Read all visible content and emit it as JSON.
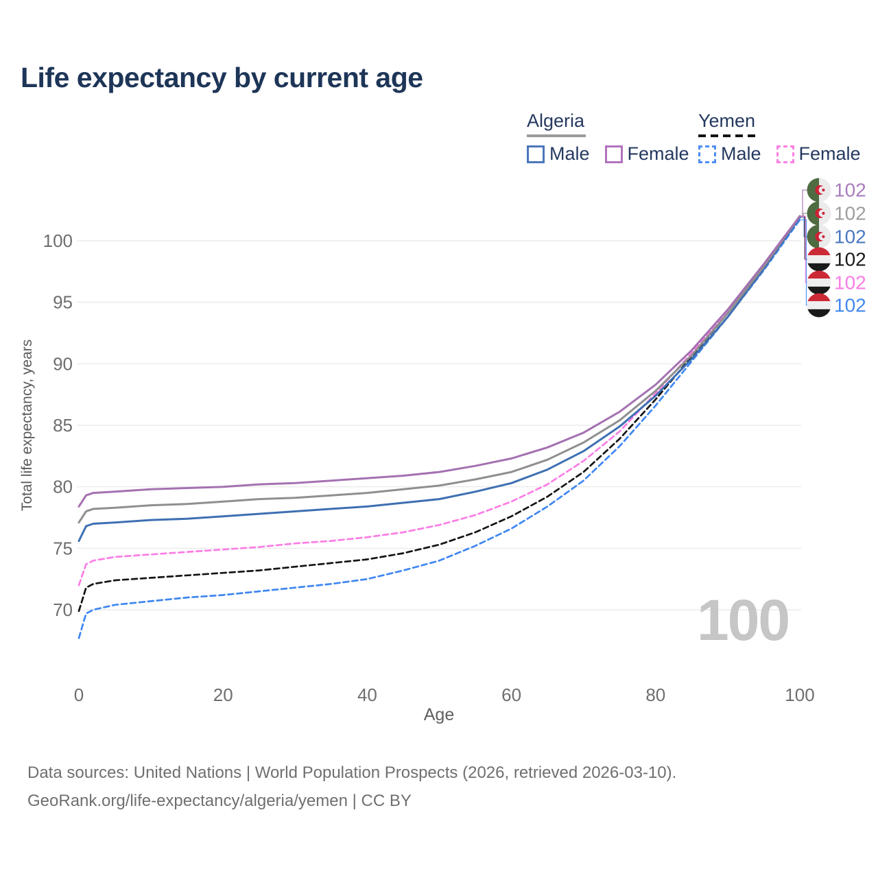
{
  "title": "Life expectancy by current age",
  "watermark": "100",
  "legend": {
    "groups": [
      {
        "label": "Algeria",
        "line_style": "solid",
        "underline_color": "#9a9a9a",
        "items": [
          {
            "label": "Male",
            "color": "#4a77bc"
          },
          {
            "label": "Female",
            "color": "#b173bd"
          }
        ]
      },
      {
        "label": "Yemen",
        "line_style": "dashed",
        "underline_color": "#141414",
        "items": [
          {
            "label": "Male",
            "color": "#4d8ef2"
          },
          {
            "label": "Female",
            "color": "#fb80e2"
          }
        ]
      }
    ]
  },
  "footer": {
    "line1": "Data sources: United Nations | World Population Prospects (2026, retrieved 2026-03-10).",
    "line2": "GeoRank.org/life-expectancy/algeria/yemen | CC BY"
  },
  "chart_data": {
    "type": "line",
    "title": "Life expectancy by current age",
    "xlabel": "Age",
    "ylabel": "Total life expectancy, years",
    "xlim": [
      0,
      100
    ],
    "ylim": [
      66,
      103
    ],
    "xticks": [
      0,
      20,
      40,
      60,
      80,
      100
    ],
    "yticks": [
      70,
      75,
      80,
      85,
      90,
      95,
      100
    ],
    "grid": "horizontal",
    "grid_color": "#ececec",
    "tick_color": "#6e6e6e",
    "legend_position": "top-right",
    "series": [
      {
        "name": "Algeria Female",
        "country": "algeria",
        "color": "#a471b1",
        "dashed": false,
        "end_label": "102",
        "end_label_color": "#a97cbc",
        "points": [
          [
            0,
            78.4
          ],
          [
            1,
            79.3
          ],
          [
            2,
            79.5
          ],
          [
            5,
            79.6
          ],
          [
            10,
            79.8
          ],
          [
            15,
            79.9
          ],
          [
            20,
            80.0
          ],
          [
            25,
            80.2
          ],
          [
            30,
            80.3
          ],
          [
            35,
            80.5
          ],
          [
            40,
            80.7
          ],
          [
            45,
            80.9
          ],
          [
            50,
            81.2
          ],
          [
            55,
            81.7
          ],
          [
            60,
            82.3
          ],
          [
            65,
            83.2
          ],
          [
            70,
            84.4
          ],
          [
            75,
            86.1
          ],
          [
            80,
            88.3
          ],
          [
            85,
            91.1
          ],
          [
            90,
            94.4
          ],
          [
            95,
            98.1
          ],
          [
            100,
            102
          ]
        ]
      },
      {
        "name": "Algeria",
        "country": "algeria",
        "color": "#8f8f8f",
        "dashed": false,
        "end_label": "102",
        "end_label_color": "#9e9e9e",
        "points": [
          [
            0,
            77.1
          ],
          [
            1,
            78.0
          ],
          [
            2,
            78.2
          ],
          [
            5,
            78.3
          ],
          [
            10,
            78.5
          ],
          [
            15,
            78.6
          ],
          [
            20,
            78.8
          ],
          [
            25,
            79.0
          ],
          [
            30,
            79.1
          ],
          [
            35,
            79.3
          ],
          [
            40,
            79.5
          ],
          [
            45,
            79.8
          ],
          [
            50,
            80.1
          ],
          [
            55,
            80.6
          ],
          [
            60,
            81.2
          ],
          [
            65,
            82.2
          ],
          [
            70,
            83.6
          ],
          [
            75,
            85.4
          ],
          [
            80,
            87.8
          ],
          [
            85,
            90.7
          ],
          [
            90,
            94.1
          ],
          [
            95,
            97.9
          ],
          [
            100,
            102
          ]
        ]
      },
      {
        "name": "Algeria Male",
        "country": "algeria",
        "color": "#3e6fb2",
        "dashed": false,
        "end_label": "102",
        "end_label_color": "#4a78c0",
        "points": [
          [
            0,
            75.6
          ],
          [
            1,
            76.8
          ],
          [
            2,
            77.0
          ],
          [
            5,
            77.1
          ],
          [
            10,
            77.3
          ],
          [
            15,
            77.4
          ],
          [
            20,
            77.6
          ],
          [
            25,
            77.8
          ],
          [
            30,
            78.0
          ],
          [
            35,
            78.2
          ],
          [
            40,
            78.4
          ],
          [
            45,
            78.7
          ],
          [
            50,
            79.0
          ],
          [
            55,
            79.6
          ],
          [
            60,
            80.3
          ],
          [
            65,
            81.4
          ],
          [
            70,
            82.9
          ],
          [
            75,
            84.9
          ],
          [
            80,
            87.4
          ],
          [
            85,
            90.4
          ],
          [
            90,
            93.8
          ],
          [
            95,
            97.7
          ],
          [
            100,
            101.9
          ]
        ]
      },
      {
        "name": "Yemen",
        "country": "yemen",
        "color": "#141414",
        "dashed": true,
        "end_label": "102",
        "end_label_color": "#1a1a1a",
        "points": [
          [
            0,
            69.9
          ],
          [
            1,
            71.8
          ],
          [
            2,
            72.1
          ],
          [
            5,
            72.4
          ],
          [
            10,
            72.6
          ],
          [
            15,
            72.8
          ],
          [
            20,
            73.0
          ],
          [
            25,
            73.2
          ],
          [
            30,
            73.5
          ],
          [
            35,
            73.8
          ],
          [
            40,
            74.1
          ],
          [
            45,
            74.6
          ],
          [
            50,
            75.3
          ],
          [
            55,
            76.3
          ],
          [
            60,
            77.6
          ],
          [
            65,
            79.2
          ],
          [
            70,
            81.2
          ],
          [
            75,
            83.9
          ],
          [
            80,
            87.1
          ],
          [
            85,
            90.6
          ],
          [
            90,
            94.1
          ],
          [
            95,
            97.9
          ],
          [
            100,
            102
          ]
        ]
      },
      {
        "name": "Yemen Female",
        "country": "yemen",
        "color": "#fb7de4",
        "dashed": true,
        "end_label": "102",
        "end_label_color": "#fb7de4",
        "points": [
          [
            0,
            72.0
          ],
          [
            1,
            73.7
          ],
          [
            2,
            74.0
          ],
          [
            5,
            74.3
          ],
          [
            10,
            74.5
          ],
          [
            15,
            74.7
          ],
          [
            20,
            74.9
          ],
          [
            25,
            75.1
          ],
          [
            30,
            75.4
          ],
          [
            35,
            75.6
          ],
          [
            40,
            75.9
          ],
          [
            45,
            76.3
          ],
          [
            50,
            76.9
          ],
          [
            55,
            77.7
          ],
          [
            60,
            78.8
          ],
          [
            65,
            80.2
          ],
          [
            70,
            82.1
          ],
          [
            75,
            84.5
          ],
          [
            80,
            87.6
          ],
          [
            85,
            90.9
          ],
          [
            90,
            94.3
          ],
          [
            95,
            98.0
          ],
          [
            100,
            102
          ]
        ]
      },
      {
        "name": "Yemen Male",
        "country": "yemen",
        "color": "#3e86f2",
        "dashed": true,
        "end_label": "102",
        "end_label_color": "#4287f0",
        "points": [
          [
            0,
            67.7
          ],
          [
            1,
            69.7
          ],
          [
            2,
            70.0
          ],
          [
            5,
            70.4
          ],
          [
            10,
            70.7
          ],
          [
            15,
            71.0
          ],
          [
            20,
            71.2
          ],
          [
            25,
            71.5
          ],
          [
            30,
            71.8
          ],
          [
            35,
            72.1
          ],
          [
            40,
            72.5
          ],
          [
            45,
            73.2
          ],
          [
            50,
            74.0
          ],
          [
            55,
            75.2
          ],
          [
            60,
            76.6
          ],
          [
            65,
            78.4
          ],
          [
            70,
            80.5
          ],
          [
            75,
            83.3
          ],
          [
            80,
            86.6
          ],
          [
            85,
            90.2
          ],
          [
            90,
            93.8
          ],
          [
            95,
            97.6
          ],
          [
            100,
            101.7
          ]
        ]
      }
    ]
  }
}
